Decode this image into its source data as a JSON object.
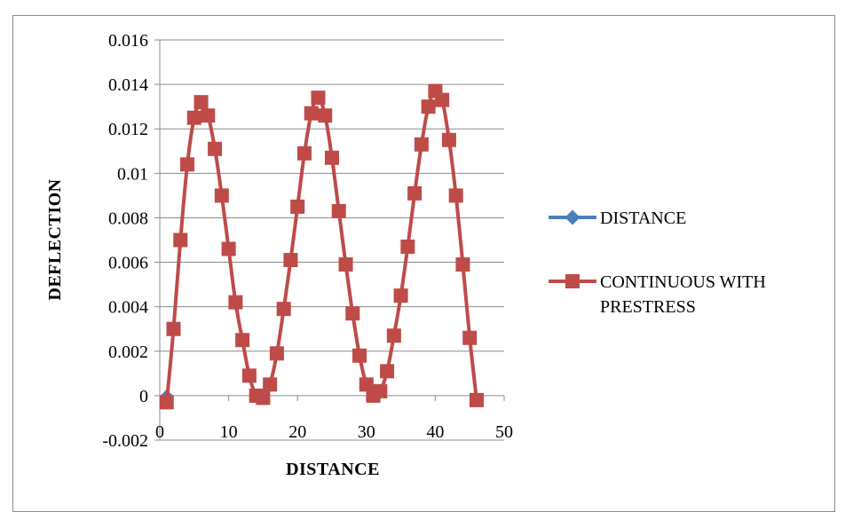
{
  "chart_data": {
    "type": "line",
    "xlabel": "DISTANCE",
    "ylabel": "DEFLECTION",
    "xlim": [
      0,
      50
    ],
    "ylim": [
      -0.002,
      0.016
    ],
    "x_ticks": [
      "0",
      "10",
      "20",
      "30",
      "40",
      "50"
    ],
    "y_ticks": [
      "-0.002",
      "0",
      "0.002",
      "0.004",
      "0.006",
      "0.008",
      "0.01",
      "0.012",
      "0.014",
      "0.016"
    ],
    "grid": "horizontal",
    "legend_position": "right",
    "series": [
      {
        "name": "DISTANCE",
        "color": "#4a7ebb",
        "marker": "diamond",
        "x": [
          1
        ],
        "y": [
          0
        ]
      },
      {
        "name": "CONTINUOUS WITH PRESTRESS",
        "name_lines": [
          "CONTINUOUS WITH",
          "PRESTRESS"
        ],
        "color": "#be4b48",
        "marker": "square",
        "x": [
          1,
          2,
          3,
          4,
          5,
          6,
          7,
          8,
          9,
          10,
          11,
          12,
          13,
          14,
          15,
          16,
          17,
          18,
          19,
          20,
          21,
          22,
          23,
          24,
          25,
          26,
          27,
          28,
          29,
          30,
          31,
          32,
          33,
          34,
          35,
          36,
          37,
          38,
          39,
          40,
          41,
          42,
          43,
          44,
          45,
          46
        ],
        "y": [
          -0.0003,
          0.003,
          0.007,
          0.0104,
          0.0125,
          0.0132,
          0.0126,
          0.0111,
          0.009,
          0.0066,
          0.0042,
          0.0025,
          0.0009,
          0.0,
          -0.0001,
          0.0005,
          0.0019,
          0.0039,
          0.0061,
          0.0085,
          0.0109,
          0.0127,
          0.0134,
          0.0126,
          0.0107,
          0.0083,
          0.0059,
          0.0037,
          0.0018,
          0.0005,
          0.0,
          0.0002,
          0.0011,
          0.0027,
          0.0045,
          0.0067,
          0.0091,
          0.0113,
          0.013,
          0.0137,
          0.0133,
          0.0115,
          0.009,
          0.0059,
          0.0026,
          -0.0002
        ]
      }
    ]
  }
}
